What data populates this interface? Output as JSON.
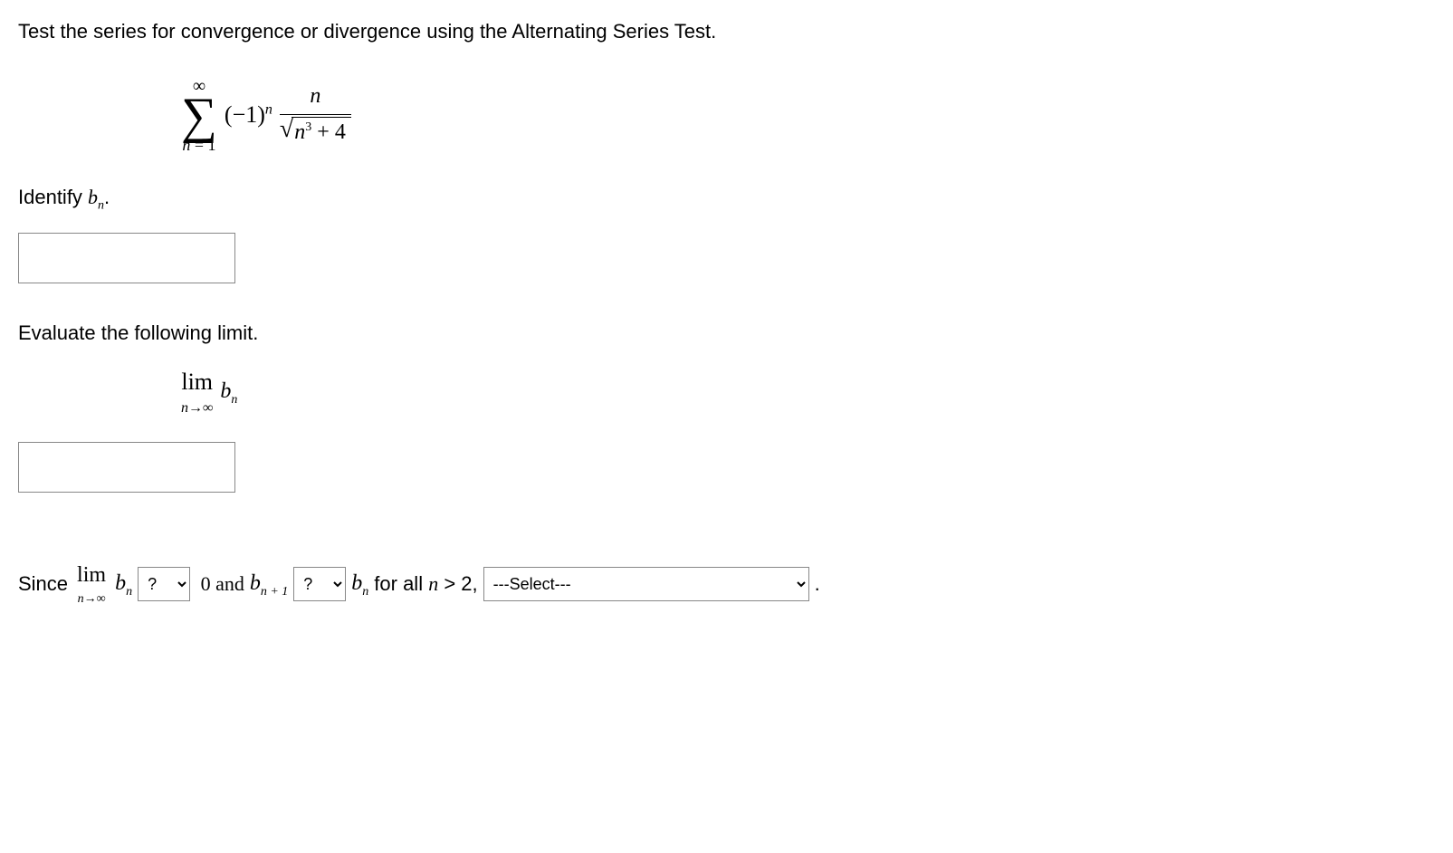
{
  "question": {
    "prompt": "Test the series for convergence or divergence using the Alternating Series Test."
  },
  "series": {
    "sigma_upper": "∞",
    "sigma_lower_var": "n",
    "sigma_lower_eq": " = 1",
    "neg1": "(−1)",
    "neg1_exp": "n",
    "frac_num": "n",
    "sqrt_var": "n",
    "sqrt_exp": "3",
    "sqrt_plus": " + 4"
  },
  "identify": {
    "label_pre": "Identify ",
    "bn_b": "b",
    "bn_n": "n",
    "label_post": ".",
    "input_value": ""
  },
  "evaluate": {
    "label": "Evaluate the following limit.",
    "lim_text": "lim",
    "lim_sub": "n→∞",
    "bn_b": "b",
    "bn_n": "n",
    "input_value": ""
  },
  "conclusion": {
    "since": "Since ",
    "lim_text": "lim",
    "lim_sub": "n→∞",
    "bn1_b": "b",
    "bn1_n": "n",
    "dropdown1_placeholder": "?",
    "zero_and": " 0 and ",
    "bn2_b": "b",
    "bn2_sub": "n + 1",
    "dropdown2_placeholder": "?",
    "bn3_b": "b",
    "bn3_n": "n",
    "for_all": " for all ",
    "n_var": "n",
    "gt2": " > 2, ",
    "dropdown3_placeholder": "---Select---",
    "period": " ."
  }
}
